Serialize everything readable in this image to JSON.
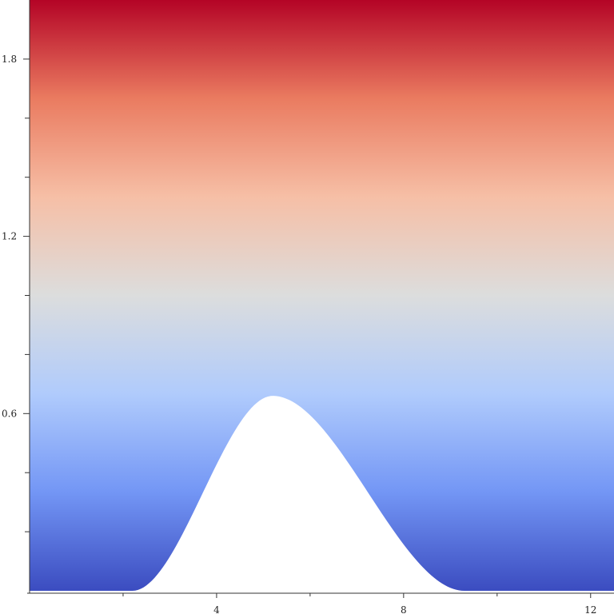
{
  "chart_data": {
    "type": "heatmap",
    "title": "",
    "xlabel": "",
    "ylabel": "",
    "xlim": [
      0,
      12.5
    ],
    "ylim": [
      0,
      2.0
    ],
    "x_ticks_major": [
      4,
      8,
      12
    ],
    "x_ticks_minor": [
      2,
      6,
      10
    ],
    "y_ticks_major": [
      0.6,
      1.2,
      1.8
    ],
    "y_ticks_minor": [
      0.2,
      0.4,
      0.8,
      1.0,
      1.4,
      1.6
    ],
    "x_tick_labels": [
      "4",
      "8",
      "12"
    ],
    "y_tick_labels": [
      "0.6",
      "1.2",
      "1.8"
    ],
    "colormap": "coolwarm",
    "color_stops": [
      "#3b4cc0",
      "#7396f5",
      "#b0cbfc",
      "#dcdddd",
      "#f6bfa6",
      "#ea7b60",
      "#b40426"
    ],
    "bump": {
      "peak_x": 5.2,
      "peak_height": 0.66,
      "x_start": 2.2,
      "x_end": 9.3
    },
    "grid": false,
    "legend": "none"
  }
}
